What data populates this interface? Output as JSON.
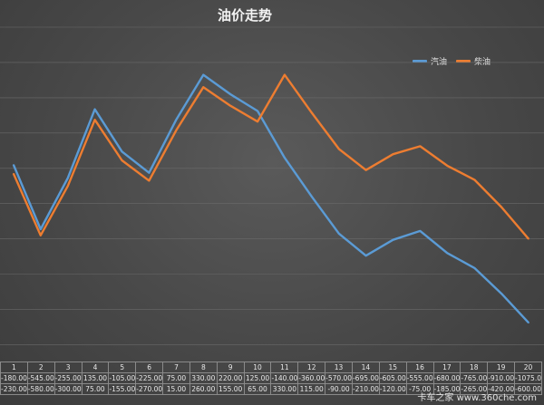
{
  "chart_data": {
    "type": "line",
    "title": "油价走势",
    "x": [
      "1",
      "2",
      "3",
      "4",
      "5",
      "6",
      "7",
      "8",
      "9",
      "10",
      "11",
      "12",
      "13",
      "14",
      "15",
      "16",
      "17",
      "18",
      "19",
      "20"
    ],
    "ylim": [
      -1300,
      600
    ],
    "grid": true,
    "legend_position": "top-right",
    "series": [
      {
        "name": "汽油",
        "color": "#5b9bd5",
        "values": [
          -180,
          -545,
          -255,
          135,
          -105,
          -225,
          75,
          330,
          220,
          125,
          -140,
          -360,
          -570,
          -695,
          -605,
          -555,
          -680,
          -765,
          -910,
          -1075
        ]
      },
      {
        "name": "柴油",
        "color": "#ed7d31",
        "values": [
          -230,
          -580,
          -300,
          75,
          -155,
          -270,
          15,
          260,
          155,
          65,
          330,
          115,
          -90,
          -210,
          -120,
          -75,
          -185,
          -265,
          -420,
          -600
        ]
      }
    ],
    "table_rows": [
      [
        "-180.00",
        "-545.00",
        "-255.00",
        "135.00",
        "-105.00",
        "-225.00",
        "75.00",
        "330.00",
        "220.00",
        "125.00",
        "-140.00",
        "-360.00",
        "-570.00",
        "-695.00",
        "-605.00",
        "-555.00",
        "-680.00",
        "-765.00",
        "-910.00",
        "-1075.00"
      ],
      [
        "-230.00",
        "-580.00",
        "-300.00",
        "75.00",
        "-155.00",
        "-270.00",
        "15.00",
        "260.00",
        "155.00",
        "65.00",
        "330.00",
        "115.00",
        "-90.00",
        "-210.00",
        "-120.00",
        "-75.00",
        "-185.00",
        "-265.00",
        "-420.00",
        "-600.00"
      ]
    ]
  },
  "watermark": "卡车之家 www.360che.com"
}
